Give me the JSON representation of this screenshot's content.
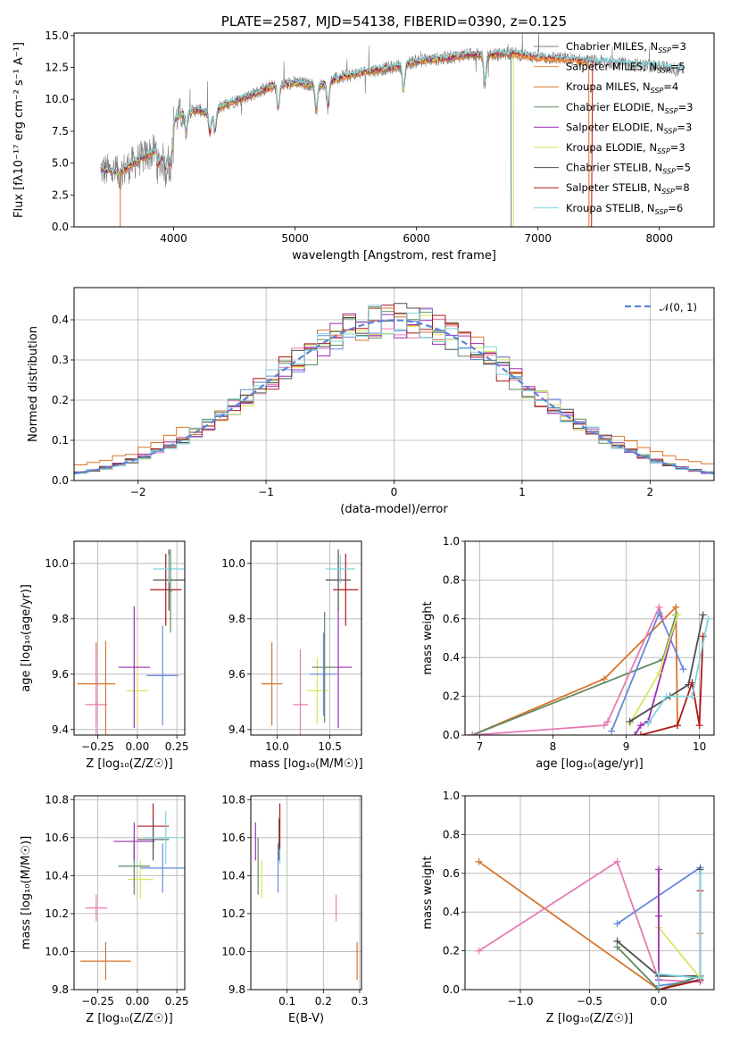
{
  "colors": {
    "Chabrier MILES": "#808080",
    "Salpeter MILES": "#f08c46",
    "Kroupa MILES": "#d9742a",
    "Chabrier ELODIE": "#5f8a60",
    "Salpeter ELODIE": "#9c2fb5",
    "Kroupa ELODIE": "#d7e85c",
    "Chabrier STELIB": "#4f4f4f",
    "Salpeter STELIB": "#b01818",
    "Kroupa STELIB": "#7fd3dd",
    "pink": "#e87bb5",
    "blue": "#6688dd"
  },
  "chart_data": [
    {
      "id": "spectrum",
      "type": "line",
      "title": "PLATE=2587, MJD=54138, FIBERID=0390, z=0.125",
      "xlabel": "wavelength [Angstrom, rest frame]",
      "ylabel": "Flux [fλ10⁻¹⁷ erg cm⁻² s⁻¹ A⁻¹]",
      "xlim": [
        3180,
        8450
      ],
      "ylim": [
        0,
        15.2
      ],
      "xticks": [
        4000,
        5000,
        6000,
        7000,
        8000
      ],
      "yticks": [
        0.0,
        2.5,
        5.0,
        7.5,
        10.0,
        12.5,
        15.0
      ],
      "ytick_labels": [
        "0.0",
        "2.5",
        "5.0",
        "7.5",
        "10.0",
        "12.5",
        "15.0"
      ],
      "legend_position": "top-right",
      "legend": [
        {
          "label": "Chabrier MILES, N",
          "sub": "SSP",
          "suffix": "=3",
          "color": "#808080"
        },
        {
          "label": "Salpeter MILES, N",
          "sub": "SSP",
          "suffix": "=5",
          "color": "#f08c46"
        },
        {
          "label": "Kroupa MILES, N",
          "sub": "SSP",
          "suffix": "=4",
          "color": "#d9742a"
        },
        {
          "label": "Chabrier ELODIE, N",
          "sub": "SSP",
          "suffix": "=3",
          "color": "#5f8a60"
        },
        {
          "label": "Salpeter ELODIE, N",
          "sub": "SSP",
          "suffix": "=3",
          "color": "#9c2fb5"
        },
        {
          "label": "Kroupa ELODIE, N",
          "sub": "SSP",
          "suffix": "=3",
          "color": "#d7e85c"
        },
        {
          "label": "Chabrier STELIB, N",
          "sub": "SSP",
          "suffix": "=5",
          "color": "#4f4f4f"
        },
        {
          "label": "Salpeter STELIB, N",
          "sub": "SSP",
          "suffix": "=8",
          "color": "#b01818"
        },
        {
          "label": "Kroupa STELIB, N",
          "sub": "SSP",
          "suffix": "=6",
          "color": "#7fd3dd"
        }
      ],
      "continuum": [
        [
          3400,
          4.5
        ],
        [
          3550,
          4.2
        ],
        [
          3700,
          5.2
        ],
        [
          3850,
          6.0
        ],
        [
          3950,
          7.8
        ],
        [
          4050,
          8.8
        ],
        [
          4200,
          9.2
        ],
        [
          4300,
          8.8
        ],
        [
          4400,
          9.5
        ],
        [
          4600,
          10.2
        ],
        [
          4800,
          11.0
        ],
        [
          5000,
          11.3
        ],
        [
          5200,
          11.1
        ],
        [
          5400,
          11.8
        ],
        [
          5600,
          12.2
        ],
        [
          5800,
          12.5
        ],
        [
          6000,
          13.0
        ],
        [
          6200,
          13.2
        ],
        [
          6400,
          13.5
        ],
        [
          6600,
          13.5
        ],
        [
          6800,
          13.6
        ],
        [
          7000,
          13.3
        ],
        [
          7200,
          13.2
        ],
        [
          7400,
          13.0
        ],
        [
          7600,
          12.9
        ],
        [
          7800,
          12.7
        ],
        [
          8000,
          12.6
        ],
        [
          8200,
          12.3
        ]
      ]
    },
    {
      "id": "residuals",
      "type": "histogram",
      "xlabel": "(data-model)/error",
      "ylabel": "Normed distribution",
      "xlim": [
        -2.5,
        2.5
      ],
      "ylim": [
        0,
        0.48
      ],
      "xticks": [
        -2,
        -1,
        0,
        1,
        2
      ],
      "xtick_labels": [
        "−2",
        "−1",
        "0",
        "1",
        "2"
      ],
      "yticks": [
        0.0,
        0.1,
        0.2,
        0.3,
        0.4
      ],
      "ytick_labels": [
        "0.0",
        "0.1",
        "0.2",
        "0.3",
        "0.4"
      ],
      "bin_width": 0.1,
      "legend_position": "top-right",
      "legend": [
        {
          "label": "𝒩(0, 1)",
          "color": "#5b84d6",
          "dashed": true
        }
      ]
    },
    {
      "id": "age-vs-Z",
      "type": "errorbar",
      "xlabel": "Z [log₁₀(Z/Z☉)]",
      "ylabel": "age [log₁₀(age/yr)]",
      "xlim": [
        -0.4,
        0.3
      ],
      "ylim": [
        9.38,
        10.08
      ],
      "xticks": [
        -0.25,
        0.0,
        0.25
      ],
      "xtick_labels": [
        "−0.25",
        "0.00",
        "0.25"
      ],
      "yticks": [
        9.4,
        9.6,
        9.8,
        10.0
      ],
      "ytick_labels": [
        "9.4",
        "9.6",
        "9.8",
        "10.0"
      ],
      "points": [
        {
          "x": -0.26,
          "xerr": 0.12,
          "y": 9.565,
          "yerr": 0.15,
          "color": "#d9742a"
        },
        {
          "x": -0.26,
          "xerr": 0.07,
          "y": 9.49,
          "yerr": 0.2,
          "color": "#e87bb5"
        },
        {
          "x": -0.2,
          "xerr": 0.0,
          "y": 9.52,
          "yerr": 0.2,
          "color": "#d9742a"
        },
        {
          "x": 0.0,
          "xerr": 0.07,
          "y": 9.54,
          "yerr": 0.12,
          "color": "#d7e85c"
        },
        {
          "x": -0.02,
          "xerr": 0.1,
          "y": 9.625,
          "yerr": 0.22,
          "color": "#9c2fb5"
        },
        {
          "x": 0.16,
          "xerr": 0.1,
          "y": 9.595,
          "yerr": 0.18,
          "color": "#6688dd"
        },
        {
          "x": 0.18,
          "xerr": 0.1,
          "y": 9.905,
          "yerr": 0.13,
          "color": "#b01818"
        },
        {
          "x": 0.2,
          "xerr": 0.1,
          "y": 9.94,
          "yerr": 0.11,
          "color": "#4f4f4f"
        },
        {
          "x": 0.2,
          "xerr": 0.1,
          "y": 9.98,
          "yerr": 0.05,
          "color": "#7fd3dd"
        },
        {
          "x": 0.21,
          "xerr": 0.01,
          "y": 9.9,
          "yerr": 0.15,
          "color": "#5f8a60"
        }
      ]
    },
    {
      "id": "age-vs-mass",
      "type": "errorbar",
      "xlabel": "mass [log₁₀(M/M☉)]",
      "ylabel": "",
      "xlim": [
        9.75,
        10.8
      ],
      "ylim": [
        9.38,
        10.08
      ],
      "xticks": [
        10.0,
        10.5
      ],
      "xtick_labels": [
        "10.0",
        "10.5"
      ],
      "yticks": [
        9.4,
        9.6,
        9.8,
        10.0
      ],
      "ytick_labels": [
        "9.4",
        "9.6",
        "9.8",
        "10.0"
      ],
      "points": [
        {
          "x": 9.95,
          "xerr": 0.1,
          "y": 9.565,
          "yerr": 0.15,
          "color": "#d9742a"
        },
        {
          "x": 10.22,
          "xerr": 0.07,
          "y": 9.49,
          "yerr": 0.2,
          "color": "#e87bb5"
        },
        {
          "x": 10.38,
          "xerr": 0.1,
          "y": 9.54,
          "yerr": 0.12,
          "color": "#d7e85c"
        },
        {
          "x": 10.44,
          "xerr": 0.13,
          "y": 9.6,
          "yerr": 0.15,
          "color": "#6688dd"
        },
        {
          "x": 10.58,
          "xerr": 0.13,
          "y": 9.625,
          "yerr": 0.22,
          "color": "#9c2fb5"
        },
        {
          "x": 10.45,
          "xerr": 0.12,
          "y": 9.625,
          "yerr": 0.2,
          "color": "#5f8a60"
        },
        {
          "x": 10.65,
          "xerr": 0.12,
          "y": 9.905,
          "yerr": 0.13,
          "color": "#b01818"
        },
        {
          "x": 10.58,
          "xerr": 0.12,
          "y": 9.94,
          "yerr": 0.11,
          "color": "#4f4f4f"
        },
        {
          "x": 10.6,
          "xerr": 0.14,
          "y": 9.98,
          "yerr": 0.05,
          "color": "#7fd3dd"
        }
      ]
    },
    {
      "id": "weight-vs-age",
      "type": "line",
      "xlabel": "age  [log₁₀(age/yr)]",
      "ylabel": "mass weight",
      "xlim": [
        6.8,
        10.2
      ],
      "ylim": [
        0,
        1
      ],
      "xticks": [
        7,
        8,
        9,
        10
      ],
      "xtick_labels": [
        "7",
        "8",
        "9",
        "10"
      ],
      "yticks": [
        0.0,
        0.2,
        0.4,
        0.6,
        0.8,
        1.0
      ],
      "ytick_labels": [
        "0.0",
        "0.2",
        "0.4",
        "0.6",
        "0.8",
        "1.0"
      ],
      "series": [
        {
          "color": "#d9742a",
          "points": [
            [
              6.9,
              0.0
            ],
            [
              8.7,
              0.29
            ],
            [
              9.68,
              0.66
            ],
            [
              9.7,
              0.05
            ]
          ]
        },
        {
          "color": "#5f8a60",
          "points": [
            [
              6.9,
              0.0
            ],
            [
              9.5,
              0.39
            ],
            [
              9.68,
              0.62
            ]
          ]
        },
        {
          "color": "#e87bb5",
          "points": [
            [
              6.9,
              0.0
            ],
            [
              8.7,
              0.05
            ],
            [
              8.75,
              0.07
            ],
            [
              9.45,
              0.66
            ],
            [
              9.5,
              0.6
            ]
          ]
        },
        {
          "color": "#6688dd",
          "points": [
            [
              8.8,
              0.02
            ],
            [
              9.45,
              0.63
            ],
            [
              9.78,
              0.34
            ]
          ]
        },
        {
          "color": "#9c2fb5",
          "points": [
            [
              9.12,
              0.0
            ],
            [
              9.2,
              0.05
            ],
            [
              9.3,
              0.07
            ],
            [
              9.7,
              0.62
            ]
          ]
        },
        {
          "color": "#d7e85c",
          "points": [
            [
              9.05,
              0.06
            ],
            [
              9.45,
              0.32
            ],
            [
              9.7,
              0.62
            ]
          ]
        },
        {
          "color": "#4f4f4f",
          "points": [
            [
              9.05,
              0.07
            ],
            [
              9.6,
              0.2
            ],
            [
              9.85,
              0.26
            ],
            [
              10.05,
              0.62
            ]
          ]
        },
        {
          "color": "#b01818",
          "points": [
            [
              9.2,
              0.0
            ],
            [
              9.7,
              0.05
            ],
            [
              9.9,
              0.27
            ],
            [
              10.0,
              0.05
            ],
            [
              10.05,
              0.51
            ]
          ]
        },
        {
          "color": "#7fd3dd",
          "points": [
            [
              9.3,
              0.06
            ],
            [
              9.55,
              0.2
            ],
            [
              9.9,
              0.2
            ],
            [
              10.12,
              0.6
            ]
          ]
        }
      ]
    },
    {
      "id": "mass-vs-Z",
      "type": "errorbar",
      "xlabel": "Z [log₁₀(Z/Z☉)]",
      "ylabel": "mass [log₁₀(M/M☉)]",
      "xlim": [
        -0.4,
        0.3
      ],
      "ylim": [
        9.8,
        10.82
      ],
      "xticks": [
        -0.25,
        0.0,
        0.25
      ],
      "xtick_labels": [
        "−0.25",
        "0.00",
        "0.25"
      ],
      "yticks": [
        9.8,
        10.0,
        10.2,
        10.4,
        10.6,
        10.8
      ],
      "ytick_labels": [
        "9.8",
        "10.0",
        "10.2",
        "10.4",
        "10.6",
        "10.8"
      ],
      "points": [
        {
          "x": -0.2,
          "xerr": 0.16,
          "y": 9.95,
          "yerr": 0.1,
          "color": "#d9742a"
        },
        {
          "x": -0.26,
          "xerr": 0.07,
          "y": 10.23,
          "yerr": 0.07,
          "color": "#e87bb5"
        },
        {
          "x": 0.02,
          "xerr": 0.08,
          "y": 10.38,
          "yerr": 0.1,
          "color": "#d7e85c"
        },
        {
          "x": -0.02,
          "xerr": 0.1,
          "y": 10.45,
          "yerr": 0.15,
          "color": "#5f8a60"
        },
        {
          "x": 0.16,
          "xerr": 0.14,
          "y": 10.44,
          "yerr": 0.13,
          "color": "#6688dd"
        },
        {
          "x": -0.02,
          "xerr": 0.13,
          "y": 10.58,
          "yerr": 0.1,
          "color": "#9c2fb5"
        },
        {
          "x": 0.1,
          "xerr": 0.1,
          "y": 10.66,
          "yerr": 0.12,
          "color": "#b01818"
        },
        {
          "x": 0.1,
          "xerr": 0.1,
          "y": 10.59,
          "yerr": 0.11,
          "color": "#4f4f4f"
        },
        {
          "x": 0.18,
          "xerr": 0.12,
          "y": 10.6,
          "yerr": 0.14,
          "color": "#7fd3dd"
        }
      ]
    },
    {
      "id": "mass-vs-EBV",
      "type": "errorbar",
      "xlabel": "E(B-V)",
      "ylabel": "",
      "xlim": [
        0.0,
        0.305
      ],
      "ylim": [
        9.8,
        10.82
      ],
      "xticks": [
        0.1,
        0.2,
        0.3
      ],
      "xtick_labels": [
        "0.1",
        "0.2",
        "0.3"
      ],
      "yticks": [
        9.8,
        10.0,
        10.2,
        10.4,
        10.6,
        10.8
      ],
      "ytick_labels": [
        "9.8",
        "10.0",
        "10.2",
        "10.4",
        "10.6",
        "10.8"
      ],
      "points": [
        {
          "x": 0.013,
          "xerr": 0.0,
          "y": 10.58,
          "yerr": 0.1,
          "color": "#9c2fb5"
        },
        {
          "x": 0.02,
          "xerr": 0.0,
          "y": 10.45,
          "yerr": 0.15,
          "color": "#5f8a60"
        },
        {
          "x": 0.03,
          "xerr": 0.0,
          "y": 10.38,
          "yerr": 0.1,
          "color": "#d7e85c"
        },
        {
          "x": 0.075,
          "xerr": 0.0,
          "y": 10.44,
          "yerr": 0.13,
          "color": "#6688dd"
        },
        {
          "x": 0.078,
          "xerr": 0.0,
          "y": 10.59,
          "yerr": 0.11,
          "color": "#4f4f4f"
        },
        {
          "x": 0.08,
          "xerr": 0.0,
          "y": 10.6,
          "yerr": 0.14,
          "color": "#7fd3dd"
        },
        {
          "x": 0.08,
          "xerr": 0.0,
          "y": 10.66,
          "yerr": 0.12,
          "color": "#b01818"
        },
        {
          "x": 0.235,
          "xerr": 0.0,
          "y": 10.23,
          "yerr": 0.07,
          "color": "#e87bb5"
        },
        {
          "x": 0.293,
          "xerr": 0.0,
          "y": 9.95,
          "yerr": 0.1,
          "color": "#d9742a"
        }
      ]
    },
    {
      "id": "weight-vs-Z",
      "type": "line",
      "xlabel": "Z [log₁₀(Z/Z☉)]",
      "ylabel": "mass weight",
      "xlim": [
        -1.4,
        0.4
      ],
      "ylim": [
        0,
        1
      ],
      "xticks": [
        -1.0,
        -0.5,
        0.0
      ],
      "xtick_labels": [
        "−1.0",
        "−0.5",
        "0.0"
      ],
      "yticks": [
        0.0,
        0.2,
        0.4,
        0.6,
        0.8,
        1.0
      ],
      "ytick_labels": [
        "0.0",
        "0.2",
        "0.4",
        "0.6",
        "0.8",
        "1.0"
      ],
      "series": [
        {
          "color": "#d9742a",
          "points": [
            [
              -1.3,
              0.66
            ],
            [
              0.0,
              0.0
            ],
            [
              0.3,
              0.05
            ],
            [
              0.3,
              0.29
            ]
          ]
        },
        {
          "color": "#e87bb5",
          "points": [
            [
              -1.3,
              0.2
            ],
            [
              -0.3,
              0.66
            ],
            [
              0.0,
              0.05
            ],
            [
              0.3,
              0.04
            ]
          ]
        },
        {
          "color": "#6688dd",
          "points": [
            [
              -0.3,
              0.34
            ],
            [
              0.3,
              0.63
            ],
            [
              0.3,
              0.05
            ],
            [
              0.0,
              0.02
            ]
          ]
        },
        {
          "color": "#4f4f4f",
          "points": [
            [
              -0.3,
              0.25
            ],
            [
              0.0,
              0.07
            ],
            [
              0.3,
              0.07
            ],
            [
              0.3,
              0.62
            ]
          ]
        },
        {
          "color": "#5f8a60",
          "points": [
            [
              -0.3,
              0.22
            ],
            [
              0.0,
              0.0
            ],
            [
              0.3,
              0.07
            ]
          ]
        },
        {
          "color": "#d7e85c",
          "points": [
            [
              0.0,
              0.62
            ],
            [
              0.0,
              0.32
            ],
            [
              0.3,
              0.06
            ]
          ]
        },
        {
          "color": "#9c2fb5",
          "points": [
            [
              0.0,
              0.62
            ],
            [
              0.0,
              0.38
            ],
            [
              0.0,
              0.05
            ]
          ]
        },
        {
          "color": "#b01818",
          "points": [
            [
              0.3,
              0.51
            ],
            [
              0.3,
              0.05
            ],
            [
              0.0,
              0.0
            ]
          ]
        },
        {
          "color": "#7fd3dd",
          "points": [
            [
              0.3,
              0.6
            ],
            [
              0.3,
              0.06
            ],
            [
              0.0,
              0.08
            ],
            [
              0.0,
              0.0
            ]
          ]
        }
      ]
    }
  ]
}
